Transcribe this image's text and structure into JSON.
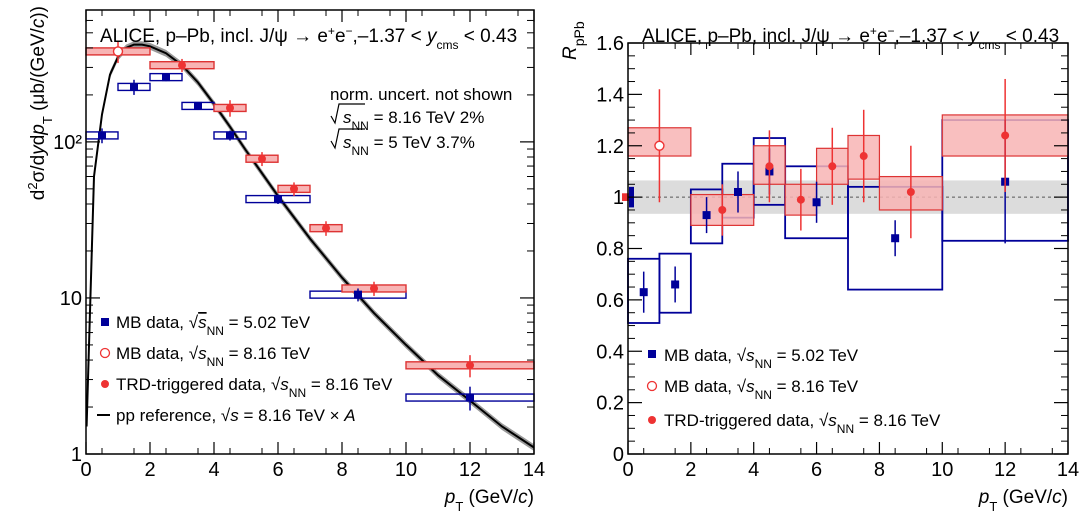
{
  "chart_data": [
    {
      "type": "scatter",
      "y_scale": "log",
      "xlim": [
        0,
        14
      ],
      "ylim": [
        1,
        700
      ],
      "x_ticks": [
        "0",
        "2",
        "4",
        "6",
        "8",
        "10",
        "12",
        "14"
      ],
      "y_ticks": [
        "1",
        "10",
        "10²"
      ],
      "header": "ALICE, p–Pb, incl. J/ψ → e⁺e⁻, –1.37 < y_cms < 0.43",
      "note": "norm. uncert. not shown",
      "norm_unc": [
        "√s_NN = 8.16 TeV 2%",
        "√s_NN = 5 TeV 3.7%"
      ],
      "ylabel": "d²σ/dydp_T (μb/(GeV/c))",
      "xlabel": "p_T (GeV/c)",
      "colors": {
        "mb502": "#000099",
        "trd": "#ee3333",
        "box_red": "#f8b4b4",
        "box_red_edge": "#dd3333",
        "curve": "#000000",
        "band": "#999999"
      },
      "series": [
        {
          "name": "MB data, √s_NN = 5.02 TeV",
          "marker": "square",
          "x": [
            0.5,
            1.5,
            2.5,
            3.5,
            4.5,
            6.0,
            8.5,
            12.0
          ],
          "xerr": [
            0.5,
            0.5,
            0.5,
            0.5,
            0.5,
            1.0,
            1.5,
            2.0
          ],
          "y": [
            110,
            225,
            260,
            170,
            110,
            43,
            10.5,
            2.3
          ],
          "yerr": [
            12,
            25,
            15,
            10,
            8,
            3,
            1.0,
            0.4
          ]
        },
        {
          "name": "MB data, √s_NN = 8.16 TeV",
          "marker": "open-circle",
          "x": [
            1.0
          ],
          "xerr": [
            1.0
          ],
          "y": [
            380
          ],
          "yerr": [
            60
          ]
        },
        {
          "name": "TRD-triggered data, √s_NN = 8.16 TeV",
          "marker": "circle",
          "x": [
            3.0,
            4.5,
            5.5,
            6.5,
            7.5,
            9.0,
            12.0
          ],
          "xerr": [
            1.0,
            0.5,
            0.5,
            0.5,
            0.5,
            1.0,
            2.0
          ],
          "y": [
            310,
            165,
            78,
            50,
            28,
            11.5,
            3.7
          ],
          "yerr": [
            30,
            20,
            8,
            5,
            3,
            1.2,
            0.6
          ]
        }
      ],
      "legend": [
        "MB data, √s_NN = 5.02 TeV",
        "MB data, √s_NN = 8.16 TeV",
        "TRD-triggered data, √s_NN = 8.16 TeV",
        "pp reference, √s = 8.16 TeV × A"
      ],
      "curve": {
        "name": "pp reference, √s = 8.16 TeV × A",
        "x": [
          0.02,
          0.25,
          0.5,
          0.75,
          1.0,
          1.25,
          1.5,
          1.75,
          2.0,
          2.5,
          3.0,
          3.5,
          4.0,
          4.5,
          5.0,
          6.0,
          7.0,
          8.0,
          9.0,
          10.0,
          11.0,
          12.0,
          13.0,
          14.0
        ],
        "y": [
          1.5,
          60,
          150,
          270,
          350,
          400,
          420,
          420,
          410,
          370,
          310,
          240,
          175,
          125,
          88,
          45,
          24,
          13.5,
          8,
          5,
          3.2,
          2.2,
          1.5,
          1.1
        ]
      }
    },
    {
      "type": "scatter",
      "xlim": [
        0,
        14
      ],
      "ylim": [
        0,
        1.6
      ],
      "x_ticks": [
        "0",
        "2",
        "4",
        "6",
        "8",
        "10",
        "12",
        "14"
      ],
      "y_ticks": [
        "0",
        "0.2",
        "0.4",
        "0.6",
        "0.8",
        "1",
        "1.2",
        "1.4",
        "1.6"
      ],
      "header": "ALICE, p–Pb, incl. J/ψ → e⁺e⁻, –1.37 < y_cms < 0.43",
      "ylabel": "R_pPb",
      "xlabel": "p_T (GeV/c)",
      "global_band": [
        0.935,
        1.065
      ],
      "global_boxes": {
        "blue": [
          0.96,
          1.04
        ],
        "red": [
          0.985,
          1.015
        ]
      },
      "series": [
        {
          "name": "MB data, √s_NN = 5.02 TeV",
          "marker": "square",
          "x": [
            0.5,
            1.5,
            2.5,
            3.5,
            4.5,
            6.0,
            8.5,
            12.0
          ],
          "xerr": [
            0.5,
            0.5,
            0.5,
            0.5,
            0.5,
            1.0,
            1.5,
            2.0
          ],
          "y": [
            0.63,
            0.66,
            0.93,
            1.02,
            1.1,
            0.98,
            0.84,
            1.06
          ],
          "yerr": [
            0.08,
            0.07,
            0.07,
            0.08,
            0.09,
            0.08,
            0.07,
            0.24
          ],
          "syst": [
            [
              0.51,
              0.76
            ],
            [
              0.55,
              0.78
            ],
            [
              0.82,
              1.03
            ],
            [
              0.92,
              1.13
            ],
            [
              0.97,
              1.23
            ],
            [
              0.84,
              1.12
            ],
            [
              0.64,
              1.04
            ],
            [
              0.83,
              1.3
            ]
          ]
        },
        {
          "name": "MB data, √s_NN = 8.16 TeV",
          "marker": "open-circle",
          "x": [
            1.0
          ],
          "xerr": [
            1.0
          ],
          "y": [
            1.2
          ],
          "yerr": [
            0.22
          ],
          "syst": [
            [
              1.16,
              1.27
            ]
          ]
        },
        {
          "name": "TRD-triggered data, √s_NN = 8.16 TeV",
          "marker": "circle",
          "x": [
            3.0,
            4.5,
            5.5,
            6.5,
            7.5,
            9.0,
            12.0
          ],
          "xerr": [
            1.0,
            0.5,
            0.5,
            0.5,
            0.5,
            1.0,
            2.0
          ],
          "y": [
            0.95,
            1.12,
            0.99,
            1.12,
            1.16,
            1.02,
            1.24
          ],
          "yerr": [
            0.1,
            0.14,
            0.12,
            0.15,
            0.18,
            0.18,
            0.22
          ],
          "syst": [
            [
              0.89,
              1.01
            ],
            [
              1.05,
              1.2
            ],
            [
              0.93,
              1.05
            ],
            [
              1.05,
              1.19
            ],
            [
              1.07,
              1.24
            ],
            [
              0.95,
              1.08
            ],
            [
              1.16,
              1.32
            ]
          ]
        }
      ],
      "legend": [
        "MB data, √s_NN = 5.02 TeV",
        "MB data, √s_NN = 8.16 TeV",
        "TRD-triggered data, √s_NN = 8.16 TeV"
      ]
    }
  ]
}
